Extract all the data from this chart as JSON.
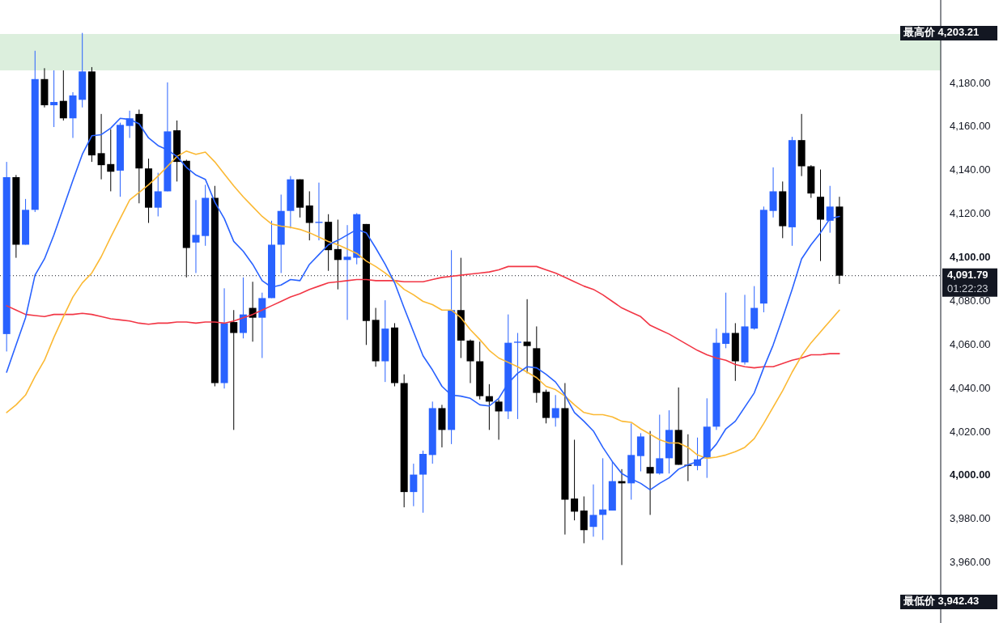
{
  "chart_data": {
    "type": "candlestick",
    "categories": [
      null,
      null,
      null,
      null,
      null,
      null,
      null,
      null,
      null,
      null,
      null,
      null,
      null,
      null,
      null,
      null,
      null,
      null,
      null,
      null,
      null,
      null,
      null,
      null,
      null,
      null,
      null,
      null,
      null,
      null,
      null,
      null,
      null,
      null,
      null,
      null,
      null,
      null,
      null,
      null,
      null,
      null,
      null,
      null,
      null,
      null,
      null,
      null,
      null,
      null,
      null,
      null,
      null,
      null,
      null,
      null,
      null,
      null,
      null,
      null,
      null,
      null,
      null,
      null,
      null,
      null,
      null,
      null,
      null,
      null,
      null,
      null,
      null,
      null,
      null,
      null,
      null,
      null,
      null,
      null,
      null,
      null,
      null,
      null,
      null,
      null,
      null,
      null,
      null
    ],
    "ohlc": [
      [
        4065,
        4144,
        4057,
        4137
      ],
      [
        4137,
        4138,
        4100,
        4106
      ],
      [
        4106,
        4127,
        4106,
        4122
      ],
      [
        4122,
        4195,
        4121,
        4182
      ],
      [
        4182,
        4187,
        4169,
        4170
      ],
      [
        4170,
        4186,
        4160,
        4171.5
      ],
      [
        4172,
        4186,
        4163,
        4164
      ],
      [
        4164,
        4176,
        4155,
        4174.5
      ],
      [
        4172.5,
        4203.2,
        4169,
        4185.5
      ],
      [
        4185.5,
        4187.5,
        4144,
        4147
      ],
      [
        4148,
        4166,
        4136,
        4142.5
      ],
      [
        4143,
        4159,
        4130.5,
        4139.5
      ],
      [
        4140,
        4162,
        4128,
        4161
      ],
      [
        4160.5,
        4167.5,
        4155,
        4164
      ],
      [
        4166,
        4168,
        4125,
        4141
      ],
      [
        4141,
        4145.5,
        4116,
        4123
      ],
      [
        4123,
        4139,
        4119,
        4130.5
      ],
      [
        4130.5,
        4180.5,
        4130.5,
        4158
      ],
      [
        4158.5,
        4163,
        4135,
        4144
      ],
      [
        4144.5,
        4145,
        4091,
        4104.5
      ],
      [
        4107,
        4126.5,
        4093,
        4110.5
      ],
      [
        4110,
        4133.5,
        4105.5,
        4127.5
      ],
      [
        4127.5,
        4133,
        4041,
        4042.5
      ],
      [
        4042.5,
        4086,
        4040,
        4070
      ],
      [
        4070.5,
        4076,
        4021,
        4065.5
      ],
      [
        4065.5,
        4091,
        4063,
        4074
      ],
      [
        4077,
        4089,
        4061.5,
        4072.5
      ],
      [
        4072.5,
        4084,
        4054,
        4081.5
      ],
      [
        4081.5,
        4117,
        4081.5,
        4106
      ],
      [
        4106,
        4129,
        4093,
        4121.5
      ],
      [
        4121.5,
        4137.5,
        4113.5,
        4136
      ],
      [
        4136,
        4136,
        4118.5,
        4123
      ],
      [
        4124,
        4130.5,
        4108,
        4116
      ],
      [
        4116,
        4134.5,
        4108,
        4116.5
      ],
      [
        4116.5,
        4120,
        4094,
        4103.5
      ],
      [
        4104,
        4117.5,
        4085.5,
        4099
      ],
      [
        4099,
        4115,
        4071.5,
        4100.5
      ],
      [
        4100,
        4120.5,
        4097,
        4120
      ],
      [
        4115.5,
        4115.5,
        4060,
        4071
      ],
      [
        4071.5,
        4077,
        4050,
        4052.5
      ],
      [
        4052.5,
        4080.5,
        4043,
        4067.5
      ],
      [
        4068,
        4070,
        4041,
        4042.5
      ],
      [
        4042.5,
        4046.5,
        3985.5,
        3992.5
      ],
      [
        3992.5,
        4005.5,
        3986,
        4000.5
      ],
      [
        4000.5,
        4011.5,
        3983,
        4010
      ],
      [
        4009.5,
        4034,
        4005.5,
        4031
      ],
      [
        4031,
        4032.5,
        4013,
        4021
      ],
      [
        4021,
        4103.5,
        4014.5,
        4076
      ],
      [
        4076,
        4100,
        4054,
        4062
      ],
      [
        4062,
        4062.5,
        4042.5,
        4052.5
      ],
      [
        4052.5,
        4061.5,
        4035,
        4036.5
      ],
      [
        4036.5,
        4042,
        4021,
        4034
      ],
      [
        4034,
        4035,
        4016.5,
        4029.5
      ],
      [
        4029.5,
        4074,
        4026,
        4061
      ],
      [
        4061,
        4065.5,
        4026,
        4061.5
      ],
      [
        4061.5,
        4081,
        4047,
        4059.5
      ],
      [
        4058.5,
        4068.5,
        4033.5,
        4038
      ],
      [
        4038.5,
        4039.5,
        4024,
        4026.5
      ],
      [
        4026.5,
        4037,
        4022.5,
        4031
      ],
      [
        4031,
        4042.5,
        3973,
        3989
      ],
      [
        3989.5,
        4016.5,
        3979.5,
        3983.5
      ],
      [
        3984,
        3990.5,
        3969,
        3975
      ],
      [
        3976.5,
        3996,
        3972,
        3982
      ],
      [
        3982,
        4008,
        3970.5,
        3984.5
      ],
      [
        3984,
        4006.5,
        3984,
        3997.5
      ],
      [
        3997.5,
        4003,
        3959,
        3996.5
      ],
      [
        3996.5,
        4024,
        3989,
        4009.5
      ],
      [
        4009,
        4019.5,
        4002,
        4018
      ],
      [
        4004,
        4020.5,
        3982,
        4001
      ],
      [
        4001,
        4028,
        4000.5,
        4008
      ],
      [
        4008,
        4030,
        4001,
        4021
      ],
      [
        4021,
        4040.5,
        4005,
        4005
      ],
      [
        4005,
        4019,
        3997.5,
        4004.5
      ],
      [
        4004.5,
        4017.5,
        4002.5,
        4007.5
      ],
      [
        4008,
        4035.5,
        3999,
        4022.5
      ],
      [
        4022.5,
        4067.5,
        4021,
        4061
      ],
      [
        4060.5,
        4084,
        4058.5,
        4065.5
      ],
      [
        4065.5,
        4070,
        4043.5,
        4052.5
      ],
      [
        4052,
        4083,
        4051,
        4068.5
      ],
      [
        4067.5,
        4087,
        4067,
        4077
      ],
      [
        4079,
        4123.5,
        4075,
        4122
      ],
      [
        4121.5,
        4141.5,
        4118.5,
        4130.5
      ],
      [
        4130.5,
        4135,
        4109,
        4114.5
      ],
      [
        4114,
        4155.5,
        4105.5,
        4154
      ],
      [
        4154,
        4166,
        4137.5,
        4142
      ],
      [
        4142,
        4142.5,
        4127.5,
        4129.5
      ],
      [
        4128,
        4140.5,
        4098.5,
        4117.5
      ],
      [
        4117,
        4133,
        4111.5,
        4123.5
      ],
      [
        4123.5,
        4128,
        4088,
        4091.79
      ]
    ],
    "series": [
      {
        "type": "line",
        "color": "#f23645",
        "values": [
          4078,
          4076,
          4074,
          4073.5,
          4073,
          4074,
          4074,
          4074,
          4074.5,
          4074,
          4073,
          4072,
          4071.5,
          4071,
          4070,
          4069.5,
          4070,
          4070,
          4070.5,
          4070.5,
          4070,
          4070.5,
          4070.5,
          4070,
          4071,
          4072.5,
          4074,
          4076,
          4078,
          4080,
          4082,
          4083.5,
          4085.5,
          4087,
          4088.5,
          4089,
          4089.5,
          4090,
          4090,
          4089.5,
          4089.5,
          4089.5,
          4089,
          4089,
          4089,
          4090,
          4091,
          4091.5,
          4092,
          4092.5,
          4093,
          4093.5,
          4094.5,
          4096,
          4096,
          4096,
          4096,
          4094.5,
          4093,
          4091,
          4089,
          4087,
          4085.5,
          4083,
          4080,
          4077,
          4075,
          4073,
          4069,
          4067,
          4065,
          4062.5,
          4060,
          4057.5,
          4055.5,
          4054,
          4053,
          4051,
          4050,
          4049.5,
          4050,
          4050,
          4051.5,
          4053,
          4054,
          4055.5,
          4055.5,
          4056,
          4056
        ]
      },
      {
        "type": "line",
        "color": "#fbb934",
        "values": [
          4029,
          4032.5,
          4037,
          4045.5,
          4053,
          4063.5,
          4073,
          4082,
          4088.5,
          4093,
          4100.5,
          4109.5,
          4118,
          4126.5,
          4130,
          4133.5,
          4137.5,
          4142,
          4146.5,
          4149,
          4147.5,
          4148.5,
          4144,
          4138.5,
          4133,
          4128,
          4123.5,
          4119,
          4115.5,
          4114.5,
          4114,
          4113,
          4111.5,
          4109.5,
          4107.5,
          4106,
          4104,
          4102,
          4098.5,
          4096,
          4093,
          4089.5,
          4085.5,
          4083,
          4080,
          4078.5,
          4076,
          4076,
          4072.5,
          4067,
          4062.5,
          4057.5,
          4054,
          4052,
          4050,
          4047.5,
          4045,
          4041,
          4039.5,
          4036.5,
          4032.5,
          4029,
          4028,
          4028,
          4027,
          4025,
          4024.5,
          4021.5,
          4019,
          4016.5,
          4015,
          4015,
          4013,
          4009.5,
          4008,
          4008.5,
          4009.5,
          4011,
          4013,
          4017,
          4024,
          4031.5,
          4039,
          4047.5,
          4055,
          4061,
          4066,
          4071,
          4076
        ]
      },
      {
        "type": "line",
        "color": "#2962ff",
        "values": [
          4047.5,
          4060,
          4072.5,
          4092,
          4099.5,
          4110.5,
          4123,
          4135.5,
          4147.5,
          4156,
          4156.5,
          4159.5,
          4164,
          4163.5,
          4161.5,
          4155,
          4151.5,
          4149.5,
          4146.5,
          4141.5,
          4138,
          4136,
          4125.5,
          4118,
          4107.5,
          4103,
          4097,
          4089.5,
          4086.5,
          4087.5,
          4090,
          4089.5,
          4097,
          4101.5,
          4106,
          4108,
          4110.5,
          4113,
          4111.5,
          4104.5,
          4097,
          4088.5,
          4077,
          4066,
          4055,
          4048.5,
          4041,
          4037,
          4036.5,
          4035.5,
          4032.5,
          4032,
          4035.5,
          4042.5,
          4047,
          4050,
          4049.5,
          4046.5,
          4043,
          4037,
          4029,
          4025,
          4020.5,
          4013,
          4006.5,
          4001,
          3998.5,
          3996.5,
          3993.5,
          3996.5,
          3999,
          4003,
          4005,
          4006.5,
          4009.5,
          4014.5,
          4021.5,
          4025,
          4031.5,
          4038,
          4049.5,
          4060,
          4072.5,
          4085.5,
          4099.5,
          4106,
          4111.5,
          4118,
          4119
        ]
      }
    ],
    "ylim": [
      3932.4,
      4218.3
    ],
    "yticks": [
      {
        "value": 3960,
        "label": "3,960.00"
      },
      {
        "value": 3980,
        "label": "3,980.00"
      },
      {
        "value": 4000,
        "label": "4,000.00"
      },
      {
        "value": 4020,
        "label": "4,020.00"
      },
      {
        "value": 4040,
        "label": "4,040.00"
      },
      {
        "value": 4060,
        "label": "4,060.00"
      },
      {
        "value": 4080,
        "label": "4,080.00"
      },
      {
        "value": 4100,
        "label": "4,100.00"
      },
      {
        "value": 4120,
        "label": "4,120.00"
      },
      {
        "value": 4140,
        "label": "4,140.00"
      },
      {
        "value": 4160,
        "label": "4,160.00"
      },
      {
        "value": 4180,
        "label": "4,180.00"
      }
    ],
    "tick_labels": "y",
    "bands": [
      {
        "axis": "y",
        "from": 4186,
        "to": 4202.7,
        "color": "#dcefdd"
      }
    ],
    "ref_lines": [
      {
        "axis": "y",
        "value": 4091.79,
        "label": "4,091.79",
        "line_style": "dotted",
        "color": "#131722"
      }
    ],
    "annotations": [
      "最高价 4,203.21",
      "最低价 3,942.43",
      "01:22:23"
    ]
  }
}
